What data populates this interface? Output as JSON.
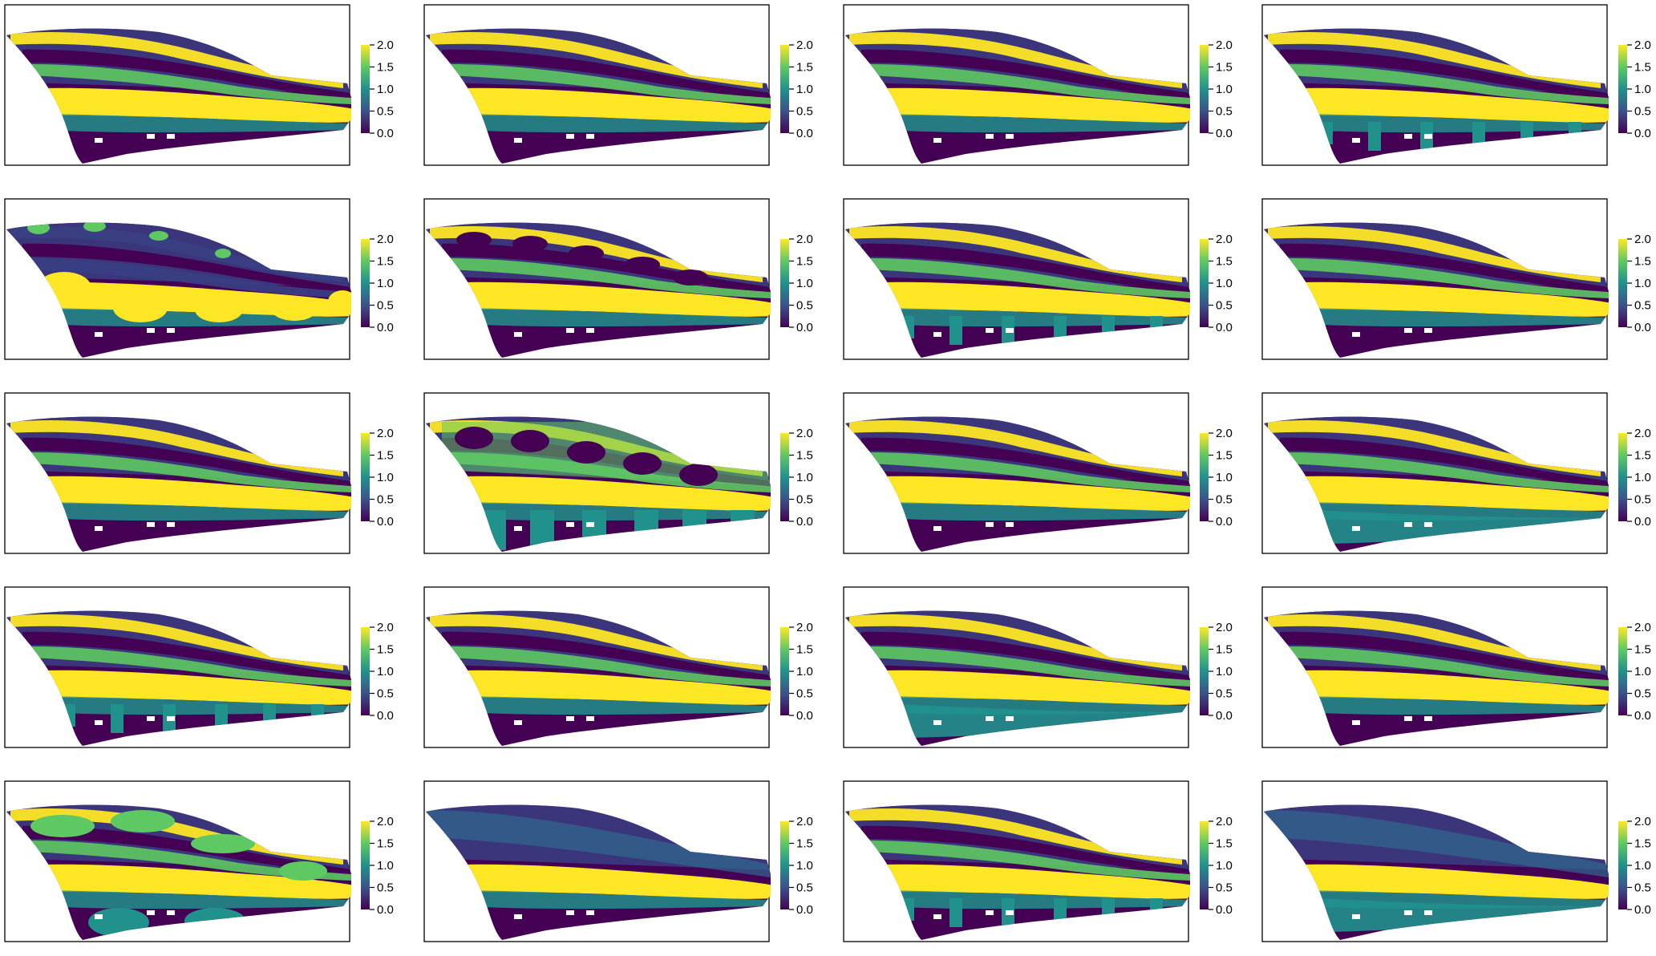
{
  "figure": {
    "rows": 5,
    "cols": 4
  },
  "colorbar": {
    "colormap": "viridis",
    "colors": [
      "#440154",
      "#3b528b",
      "#21918c",
      "#5ec962",
      "#fde725"
    ],
    "ticks": [
      "0.0",
      "0.5",
      "1.0",
      "1.5",
      "2.0"
    ],
    "range": [
      0,
      2
    ]
  },
  "chart_data": [
    {
      "type": "heatmap",
      "panel": 1,
      "variant": "stripes",
      "value_range": [
        0,
        2
      ],
      "colorbar_ticks": [
        "0.0",
        "0.5",
        "1.0",
        "1.5",
        "2.0"
      ]
    },
    {
      "type": "heatmap",
      "panel": 2,
      "variant": "stripes",
      "value_range": [
        0,
        2
      ],
      "colorbar_ticks": [
        "0.0",
        "0.5",
        "1.0",
        "1.5",
        "2.0"
      ]
    },
    {
      "type": "heatmap",
      "panel": 3,
      "variant": "stripes",
      "value_range": [
        0,
        2
      ],
      "colorbar_ticks": [
        "0.0",
        "0.5",
        "1.0",
        "1.5",
        "2.0"
      ]
    },
    {
      "type": "heatmap",
      "panel": 4,
      "variant": "stripes-bars",
      "value_range": [
        0,
        2
      ],
      "colorbar_ticks": [
        "0.0",
        "0.5",
        "1.0",
        "1.5",
        "2.0"
      ]
    },
    {
      "type": "heatmap",
      "panel": 5,
      "variant": "spots",
      "value_range": [
        0,
        2
      ],
      "colorbar_ticks": [
        "0.0",
        "0.5",
        "1.0",
        "1.5",
        "2.0"
      ]
    },
    {
      "type": "heatmap",
      "panel": 6,
      "variant": "stripes-spots",
      "value_range": [
        0,
        2
      ],
      "colorbar_ticks": [
        "0.0",
        "0.5",
        "1.0",
        "1.5",
        "2.0"
      ]
    },
    {
      "type": "heatmap",
      "panel": 7,
      "variant": "stripes-bars",
      "value_range": [
        0,
        2
      ],
      "colorbar_ticks": [
        "0.0",
        "0.5",
        "1.0",
        "1.5",
        "2.0"
      ]
    },
    {
      "type": "heatmap",
      "panel": 8,
      "variant": "stripes",
      "value_range": [
        0,
        2
      ],
      "colorbar_ticks": [
        "0.0",
        "0.5",
        "1.0",
        "1.5",
        "2.0"
      ]
    },
    {
      "type": "heatmap",
      "panel": 9,
      "variant": "stripes",
      "value_range": [
        0,
        2
      ],
      "colorbar_ticks": [
        "0.0",
        "0.5",
        "1.0",
        "1.5",
        "2.0"
      ]
    },
    {
      "type": "heatmap",
      "panel": 10,
      "variant": "arches",
      "value_range": [
        0,
        2
      ],
      "colorbar_ticks": [
        "0.0",
        "0.5",
        "1.0",
        "1.5",
        "2.0"
      ]
    },
    {
      "type": "heatmap",
      "panel": 11,
      "variant": "stripes",
      "value_range": [
        0,
        2
      ],
      "colorbar_ticks": [
        "0.0",
        "0.5",
        "1.0",
        "1.5",
        "2.0"
      ]
    },
    {
      "type": "heatmap",
      "panel": 12,
      "variant": "stripes-belly",
      "value_range": [
        0,
        2
      ],
      "colorbar_ticks": [
        "0.0",
        "0.5",
        "1.0",
        "1.5",
        "2.0"
      ]
    },
    {
      "type": "heatmap",
      "panel": 13,
      "variant": "stripes-bars",
      "value_range": [
        0,
        2
      ],
      "colorbar_ticks": [
        "0.0",
        "0.5",
        "1.0",
        "1.5",
        "2.0"
      ]
    },
    {
      "type": "heatmap",
      "panel": 14,
      "variant": "stripes",
      "value_range": [
        0,
        2
      ],
      "colorbar_ticks": [
        "0.0",
        "0.5",
        "1.0",
        "1.5",
        "2.0"
      ]
    },
    {
      "type": "heatmap",
      "panel": 15,
      "variant": "stripes-belly",
      "value_range": [
        0,
        2
      ],
      "colorbar_ticks": [
        "0.0",
        "0.5",
        "1.0",
        "1.5",
        "2.0"
      ]
    },
    {
      "type": "heatmap",
      "panel": 16,
      "variant": "stripes",
      "value_range": [
        0,
        2
      ],
      "colorbar_ticks": [
        "0.0",
        "0.5",
        "1.0",
        "1.5",
        "2.0"
      ]
    },
    {
      "type": "heatmap",
      "panel": 17,
      "variant": "blobs",
      "value_range": [
        0,
        2
      ],
      "colorbar_ticks": [
        "0.0",
        "0.5",
        "1.0",
        "1.5",
        "2.0"
      ]
    },
    {
      "type": "heatmap",
      "panel": 18,
      "variant": "faint",
      "value_range": [
        0,
        2
      ],
      "colorbar_ticks": [
        "0.0",
        "0.5",
        "1.0",
        "1.5",
        "2.0"
      ]
    },
    {
      "type": "heatmap",
      "panel": 19,
      "variant": "stripes-bars",
      "value_range": [
        0,
        2
      ],
      "colorbar_ticks": [
        "0.0",
        "0.5",
        "1.0",
        "1.5",
        "2.0"
      ]
    },
    {
      "type": "heatmap",
      "panel": 20,
      "variant": "faint-belly",
      "value_range": [
        0,
        2
      ],
      "colorbar_ticks": [
        "0.0",
        "0.5",
        "1.0",
        "1.5",
        "2.0"
      ]
    }
  ]
}
